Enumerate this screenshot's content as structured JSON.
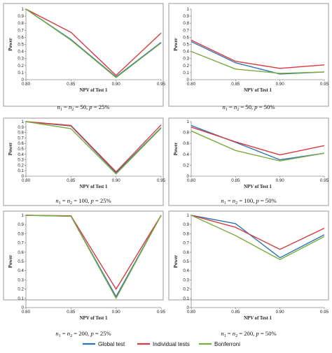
{
  "colors": {
    "global": "#2e75b6",
    "individual": "#d83a3f",
    "bonferroni": "#7aab3d"
  },
  "legend": [
    {
      "key": "global",
      "label": "Global test"
    },
    {
      "key": "individual",
      "label": "Individual tests"
    },
    {
      "key": "bonferroni",
      "label": "Bonferroni"
    }
  ],
  "chart_data": [
    {
      "type": "line",
      "ylabel": "Power",
      "xlabel": "NPV of Test 1",
      "x": [
        0.8,
        0.85,
        0.9,
        0.95
      ],
      "x_tick_labels": [
        "0.80",
        "0.85",
        "0.90",
        "0.95"
      ],
      "ylim": [
        0,
        1
      ],
      "y_ticks": [
        "0",
        "0.1",
        "0.2",
        "0.3",
        "0.4",
        "0.5",
        "0.6",
        "0.7",
        "0.8",
        "0.9",
        "1"
      ],
      "caption": {
        "n": "50",
        "p": "25%"
      },
      "series": [
        {
          "key": "global",
          "name": "Global test",
          "values": [
            1.0,
            0.57,
            0.04,
            0.53
          ]
        },
        {
          "key": "individual",
          "name": "Individual tests",
          "values": [
            1.0,
            0.67,
            0.06,
            0.66
          ]
        },
        {
          "key": "bonferroni",
          "name": "Bonferroni",
          "values": [
            1.0,
            0.56,
            0.03,
            0.52
          ]
        }
      ]
    },
    {
      "type": "line",
      "ylabel": "Power",
      "xlabel": "NPV of Test 1",
      "x": [
        0.8,
        0.85,
        0.9,
        0.95
      ],
      "x_tick_labels": [
        "0.80",
        "0.85",
        "0.90",
        "0.95"
      ],
      "ylim": [
        0,
        1
      ],
      "y_ticks": [
        "0",
        "0.1",
        "0.2",
        "0.3",
        "0.4",
        "0.5",
        "0.6",
        "0.7",
        "0.8",
        "0.9",
        "1"
      ],
      "caption": {
        "n": "50",
        "p": "50%"
      },
      "series": [
        {
          "key": "global",
          "name": "Global test",
          "values": [
            0.54,
            0.24,
            0.08,
            0.11
          ]
        },
        {
          "key": "individual",
          "name": "Individual tests",
          "values": [
            0.56,
            0.26,
            0.16,
            0.21
          ]
        },
        {
          "key": "bonferroni",
          "name": "Bonferroni",
          "values": [
            0.4,
            0.15,
            0.09,
            0.11
          ]
        }
      ]
    },
    {
      "type": "line",
      "ylabel": "Power",
      "xlabel": "NPV of Test 1",
      "x": [
        0.8,
        0.85,
        0.9,
        0.95
      ],
      "x_tick_labels": [
        "0.80",
        "0.85",
        "0.90",
        "0.95"
      ],
      "ylim": [
        0,
        1
      ],
      "y_ticks": [
        "0",
        "0.1",
        "0.2",
        "0.3",
        "0.4",
        "0.5",
        "0.6",
        "0.7",
        "0.8",
        "0.9",
        "1"
      ],
      "caption": {
        "n": "100",
        "p": "25%"
      },
      "series": [
        {
          "key": "global",
          "name": "Global test",
          "values": [
            1.0,
            0.92,
            0.06,
            0.89
          ]
        },
        {
          "key": "individual",
          "name": "Individual tests",
          "values": [
            1.0,
            0.93,
            0.08,
            0.94
          ]
        },
        {
          "key": "bonferroni",
          "name": "Bonferroni",
          "values": [
            1.0,
            0.87,
            0.04,
            0.88
          ]
        }
      ]
    },
    {
      "type": "line",
      "ylabel": "Power",
      "xlabel": "NPV of Test 1",
      "x": [
        0.8,
        0.85,
        0.9,
        0.95
      ],
      "x_tick_labels": [
        "0.80",
        "0.85",
        "0.90",
        "0.95"
      ],
      "ylim": [
        0,
        1
      ],
      "y_ticks": [
        "0",
        "0.2",
        "0.4",
        "0.6",
        "0.8",
        "1"
      ],
      "caption": {
        "n": "100",
        "p": "50%"
      },
      "series": [
        {
          "key": "global",
          "name": "Global test",
          "values": [
            0.93,
            0.62,
            0.3,
            0.42
          ]
        },
        {
          "key": "individual",
          "name": "Individual tests",
          "values": [
            0.9,
            0.63,
            0.39,
            0.56
          ]
        },
        {
          "key": "bonferroni",
          "name": "Bonferroni",
          "values": [
            0.83,
            0.47,
            0.28,
            0.42
          ]
        }
      ]
    },
    {
      "type": "line",
      "ylabel": "Power",
      "xlabel": "NPV of Test 1",
      "x": [
        0.8,
        0.85,
        0.9,
        0.95
      ],
      "x_tick_labels": [
        "0.80",
        "0.85",
        "0.90",
        "0.95"
      ],
      "ylim": [
        0,
        1
      ],
      "y_ticks": [
        "0",
        "0.1",
        "0.2",
        "0.3",
        "0.4",
        "0.5",
        "0.6",
        "0.7",
        "0.8",
        "0.9",
        "1"
      ],
      "caption": {
        "n": "200",
        "p": "25%"
      },
      "series": [
        {
          "key": "global",
          "name": "Global test",
          "values": [
            1.0,
            0.99,
            0.12,
            1.0
          ]
        },
        {
          "key": "individual",
          "name": "Individual tests",
          "values": [
            1.0,
            0.995,
            0.2,
            1.0
          ]
        },
        {
          "key": "bonferroni",
          "name": "Bonferroni",
          "values": [
            1.0,
            0.99,
            0.1,
            1.0
          ]
        }
      ]
    },
    {
      "type": "line",
      "ylabel": "Power",
      "xlabel": "NPV of Test 1",
      "x": [
        0.8,
        0.85,
        0.9,
        0.95
      ],
      "x_tick_labels": [
        "0.80",
        "0.85",
        "0.90",
        "0.95"
      ],
      "ylim": [
        0,
        1
      ],
      "y_ticks": [
        "0",
        "0.1",
        "0.2",
        "0.3",
        "0.4",
        "0.5",
        "0.6",
        "0.7",
        "0.8",
        "0.9",
        "1"
      ],
      "caption": {
        "n": "200",
        "p": "50%"
      },
      "series": [
        {
          "key": "global",
          "name": "Global test",
          "values": [
            1.0,
            0.91,
            0.54,
            0.79
          ]
        },
        {
          "key": "individual",
          "name": "Individual tests",
          "values": [
            1.0,
            0.87,
            0.63,
            0.86
          ]
        },
        {
          "key": "bonferroni",
          "name": "Bonferroni",
          "values": [
            1.0,
            0.78,
            0.52,
            0.77
          ]
        }
      ]
    }
  ]
}
